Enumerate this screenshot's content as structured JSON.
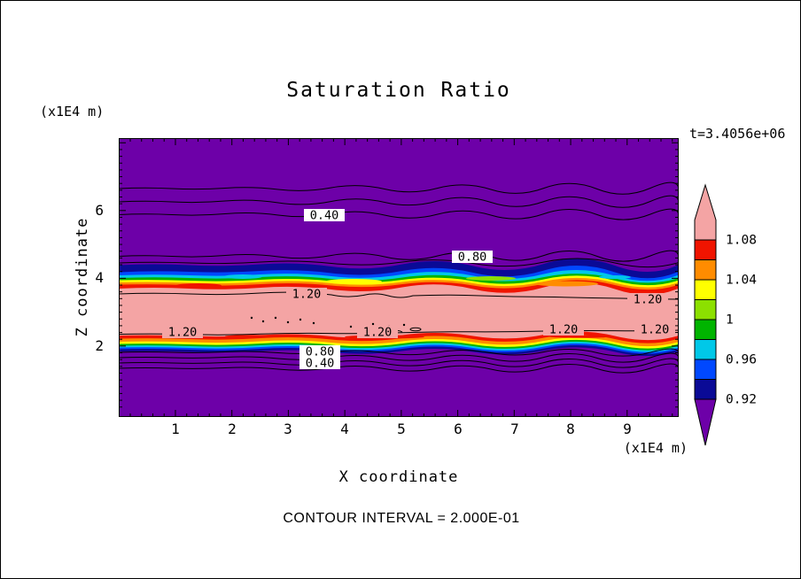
{
  "title": "Saturation Ratio",
  "time_label": "t=3.4056e+06",
  "footer": "CONTOUR INTERVAL = 2.000E-01",
  "y_axis": {
    "label": "Z coordinate",
    "unit": "(x1E4 m)",
    "ticks": [
      "6",
      "4",
      "2"
    ]
  },
  "x_axis": {
    "label": "X coordinate",
    "unit": "(x1E4 m)",
    "ticks": [
      "1",
      "2",
      "3",
      "4",
      "5",
      "6",
      "7",
      "8",
      "9"
    ]
  },
  "colorbar": {
    "labels": [
      "1.08",
      "1.04",
      "1",
      "0.96",
      "0.92"
    ],
    "colors": [
      "#f4a4a4",
      "#f01400",
      "#ff8c00",
      "#ffff00",
      "#8ce000",
      "#00b400",
      "#00c8e8",
      "#0048ff",
      "#0a0a96",
      "#6d00a8"
    ]
  },
  "contour_labels": {
    "top_040": "0.40",
    "top_080": "0.80",
    "pink_a": "1.20",
    "pink_b": "1.20",
    "pink_c": "1.20",
    "pink_d": "1.20",
    "pink_e": "1.20",
    "pink_f": "1.20",
    "bottom_080": "0.80",
    "bottom_040": "0.40"
  },
  "chart_data": {
    "type": "heatmap",
    "subtype": "filled-contour",
    "title": "Saturation Ratio",
    "xlabel": "X coordinate",
    "ylabel": "Z coordinate",
    "axis_units": "(x1E4 m)",
    "x_range": [
      0,
      9.9
    ],
    "y_range": [
      0,
      8.2
    ],
    "x_ticks": [
      1,
      2,
      3,
      4,
      5,
      6,
      7,
      8,
      9
    ],
    "y_ticks": [
      2,
      4,
      6
    ],
    "time": "t=3.4056e+06",
    "contour_interval": 0.2,
    "contour_line_values": [
      0.4,
      0.8,
      1.2
    ],
    "colorbar_tick_values": [
      1.08,
      1.04,
      1,
      0.96,
      0.92
    ],
    "colorbar_band_edges": [
      0.92,
      0.94,
      0.96,
      0.98,
      1.0,
      1.02,
      1.04,
      1.06,
      1.08
    ],
    "structure": "horizontally stratified saturation-ratio field",
    "layers": [
      {
        "z_from": 4.4,
        "z_to": 8.2,
        "saturation": "< 0.92",
        "color": "purple",
        "contours_crossing": [
          0.2,
          0.4,
          0.6,
          0.8
        ]
      },
      {
        "z_from": 3.9,
        "z_to": 4.4,
        "saturation": "0.92 to 1.08 transition",
        "color": "navy-blue-cyan-green-yellow-orange-red"
      },
      {
        "z_from": 2.3,
        "z_to": 3.9,
        "saturation": "> 1.08, peak about 1.2-1.3",
        "color": "pink",
        "contours_crossing": [
          1.2
        ]
      },
      {
        "z_from": 1.95,
        "z_to": 2.3,
        "saturation": "1.08 to 0.92 transition",
        "color": "red-orange-yellow-green-cyan-blue-navy"
      },
      {
        "z_from": 0,
        "z_to": 1.95,
        "saturation": "< 0.92",
        "color": "purple",
        "contours_crossing": [
          0.8,
          0.4
        ]
      }
    ]
  }
}
